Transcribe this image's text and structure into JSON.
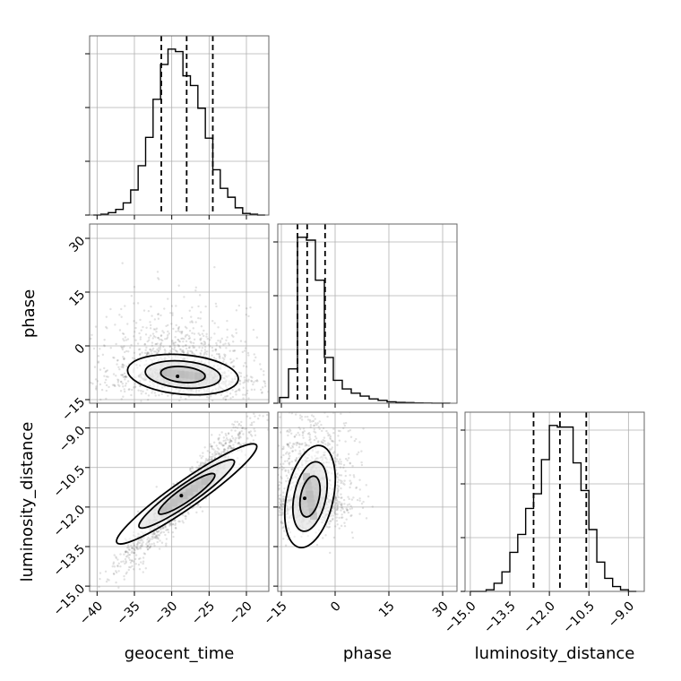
{
  "chart_data": {
    "type": "corner",
    "parameters": [
      "geocent_time",
      "phase",
      "luminosity_distance"
    ],
    "grid": true,
    "diagonal": [
      {
        "parameter": "geocent_time",
        "type": "histogram",
        "range": [
          -41,
          -17
        ],
        "bin_edges": [
          -40.5,
          -39.5,
          -38.5,
          -37.5,
          -36.5,
          -35.5,
          -34.5,
          -33.5,
          -32.5,
          -31.5,
          -30.5,
          -29.5,
          -28.5,
          -27.5,
          -26.5,
          -25.5,
          -24.5,
          -23.5,
          -22.5,
          -21.5,
          -20.5,
          -19.5,
          -18.5,
          -17.5
        ],
        "counts": [
          0.0,
          0.5,
          1.5,
          3.5,
          7.5,
          15.5,
          30.5,
          48.0,
          71.5,
          93.0,
          102.5,
          101.0,
          86.0,
          80.0,
          66.0,
          47.5,
          28.0,
          16.5,
          11.0,
          4.5,
          1.0,
          0.5,
          0.0
        ],
        "quantiles": [
          -31.4,
          -28.0,
          -24.5
        ],
        "ticks": [
          -40,
          -35,
          -30,
          -25,
          -20
        ],
        "tick_labels_shown": false
      },
      {
        "parameter": "phase",
        "type": "histogram",
        "range": [
          -16,
          34
        ],
        "bin_edges": [
          -15.5,
          -13.0,
          -10.5,
          -8.0,
          -5.5,
          -3.0,
          -0.5,
          2.0,
          4.5,
          7.0,
          9.5,
          12.0,
          14.5,
          17.0,
          19.5,
          22.0,
          24.5,
          27.0,
          29.5,
          32.0
        ],
        "counts": [
          2,
          12,
          58,
          57,
          43,
          16,
          8,
          5,
          3.5,
          2.5,
          1.5,
          1,
          0.5,
          0.3,
          0.2,
          0.1,
          0.05,
          0.02,
          0.01
        ],
        "quantiles": [
          -10.5,
          -7.8,
          -2.8
        ],
        "ticks": [
          -15,
          0,
          15,
          30
        ],
        "tick_labels_shown": false
      },
      {
        "parameter": "luminosity_distance",
        "type": "histogram",
        "range": [
          -15.2,
          -8.4
        ],
        "bin_edges": [
          -15.0,
          -14.7,
          -14.4,
          -14.1,
          -13.8,
          -13.5,
          -13.2,
          -12.9,
          -12.6,
          -12.3,
          -12.0,
          -11.7,
          -11.4,
          -11.1,
          -10.8,
          -10.5,
          -10.2,
          -9.9,
          -9.6,
          -9.3,
          -9.0,
          -8.7
        ],
        "counts": [
          0,
          0,
          1,
          5,
          12,
          24,
          35,
          51,
          60,
          81,
          102,
          101,
          101,
          79,
          62,
          38,
          18,
          8,
          3,
          1,
          0
        ],
        "quantiles": [
          -12.6,
          -11.6,
          -10.6
        ],
        "ticks": [
          -15.0,
          -13.5,
          -12.0,
          -10.5,
          -9.0
        ],
        "tick_labels": [
          "-15.0",
          "-13.5",
          "-12.0",
          "-10.5",
          "-9.0"
        ]
      }
    ],
    "off_diagonal": [
      {
        "x": "geocent_time",
        "y": "phase",
        "xrange": [
          -41,
          -17
        ],
        "yrange": [
          -16,
          34
        ],
        "type": "scatter+contour",
        "yticks": [
          -15,
          0,
          15,
          30
        ],
        "ytick_labels": [
          "-15",
          "0",
          "15",
          "30"
        ],
        "mean": [
          -28.5,
          -8.0
        ],
        "spread": [
          5.0,
          6.0
        ],
        "correlation": -0.15
      },
      {
        "x": "geocent_time",
        "y": "luminosity_distance",
        "xrange": [
          -41,
          -17
        ],
        "yrange": [
          -15.2,
          -8.4
        ],
        "type": "scatter+contour",
        "xticks": [
          -40,
          -35,
          -30,
          -25,
          -20
        ],
        "xtick_labels": [
          "-40",
          "-35",
          "-30",
          "-25",
          "-20"
        ],
        "yticks": [
          -15.0,
          -13.5,
          -12.0,
          -10.5,
          -9.0
        ],
        "ytick_labels": [
          "-15.0",
          "-13.5",
          "-12.0",
          "-10.5",
          "-9.0"
        ],
        "mean": [
          -28.0,
          -11.5
        ],
        "spread": [
          4.5,
          1.4
        ],
        "correlation": 0.96
      },
      {
        "x": "phase",
        "y": "luminosity_distance",
        "xrange": [
          -16,
          34
        ],
        "yrange": [
          -15.2,
          -8.4
        ],
        "type": "scatter+contour",
        "xticks": [
          -15,
          0,
          15,
          30
        ],
        "xtick_labels": [
          "-15",
          "0",
          "15",
          "30"
        ],
        "mean": [
          -7.0,
          -11.6
        ],
        "spread": [
          6.0,
          1.2
        ],
        "correlation": 0.05
      }
    ],
    "xlabels": [
      "geocent_time",
      "phase",
      "luminosity_distance"
    ],
    "ylabels": [
      "",
      "phase",
      "luminosity_distance"
    ]
  }
}
